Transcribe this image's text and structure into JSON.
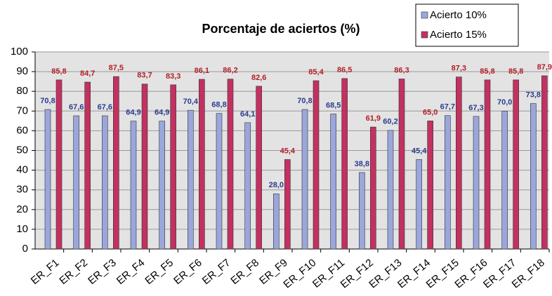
{
  "chart_data": {
    "type": "bar",
    "title": "Porcentaje de aciertos (%)",
    "categories": [
      "ER_F1",
      "ER_F2",
      "ER_F3",
      "ER_F4",
      "ER_F5",
      "ER_F6",
      "ER_F7",
      "ER_F8",
      "ER_F9",
      "ER_F10",
      "ER_F11",
      "ER_F12",
      "ER_F13",
      "ER_F14",
      "ER_F15",
      "ER_F16",
      "ER_F17",
      "ER_F18"
    ],
    "series": [
      {
        "name": "Acierto 10%",
        "color": "#9ba6dc",
        "label_color": "#2a3d8f",
        "values": [
          70.8,
          67.6,
          67.6,
          64.9,
          64.9,
          70.4,
          68.8,
          64.1,
          28.0,
          70.8,
          68.5,
          38.8,
          60.2,
          45.4,
          67.7,
          67.3,
          70.0,
          73.8
        ],
        "value_labels": [
          "70,8",
          "67,6",
          "67,6",
          "64,9",
          "64,9",
          "70,4",
          "68,8",
          "64,1",
          "28,0",
          "70,8",
          "68,5",
          "38,8",
          "60,2",
          "45,4",
          "67,7",
          "67,3",
          "70,0",
          "73,8"
        ]
      },
      {
        "name": "Acierto 15%",
        "color": "#c2315f",
        "label_color": "#b3202a",
        "values": [
          85.8,
          84.7,
          87.5,
          83.7,
          83.3,
          86.1,
          86.2,
          82.6,
          45.4,
          85.4,
          86.5,
          61.9,
          86.3,
          65.0,
          87.3,
          85.8,
          85.8,
          87.9
        ],
        "value_labels": [
          "85,8",
          "84,7",
          "87,5",
          "83,7",
          "83,3",
          "86,1",
          "86,2",
          "82,6",
          "45,4",
          "85,4",
          "86,5",
          "61,9",
          "86,3",
          "65,0",
          "87,3",
          "85,8",
          "85,8",
          "87,9"
        ]
      }
    ],
    "ylim": [
      0,
      100
    ],
    "yticks": [
      0,
      10,
      20,
      30,
      40,
      50,
      60,
      70,
      80,
      90,
      100
    ],
    "grid": true,
    "legend": "top-right"
  }
}
